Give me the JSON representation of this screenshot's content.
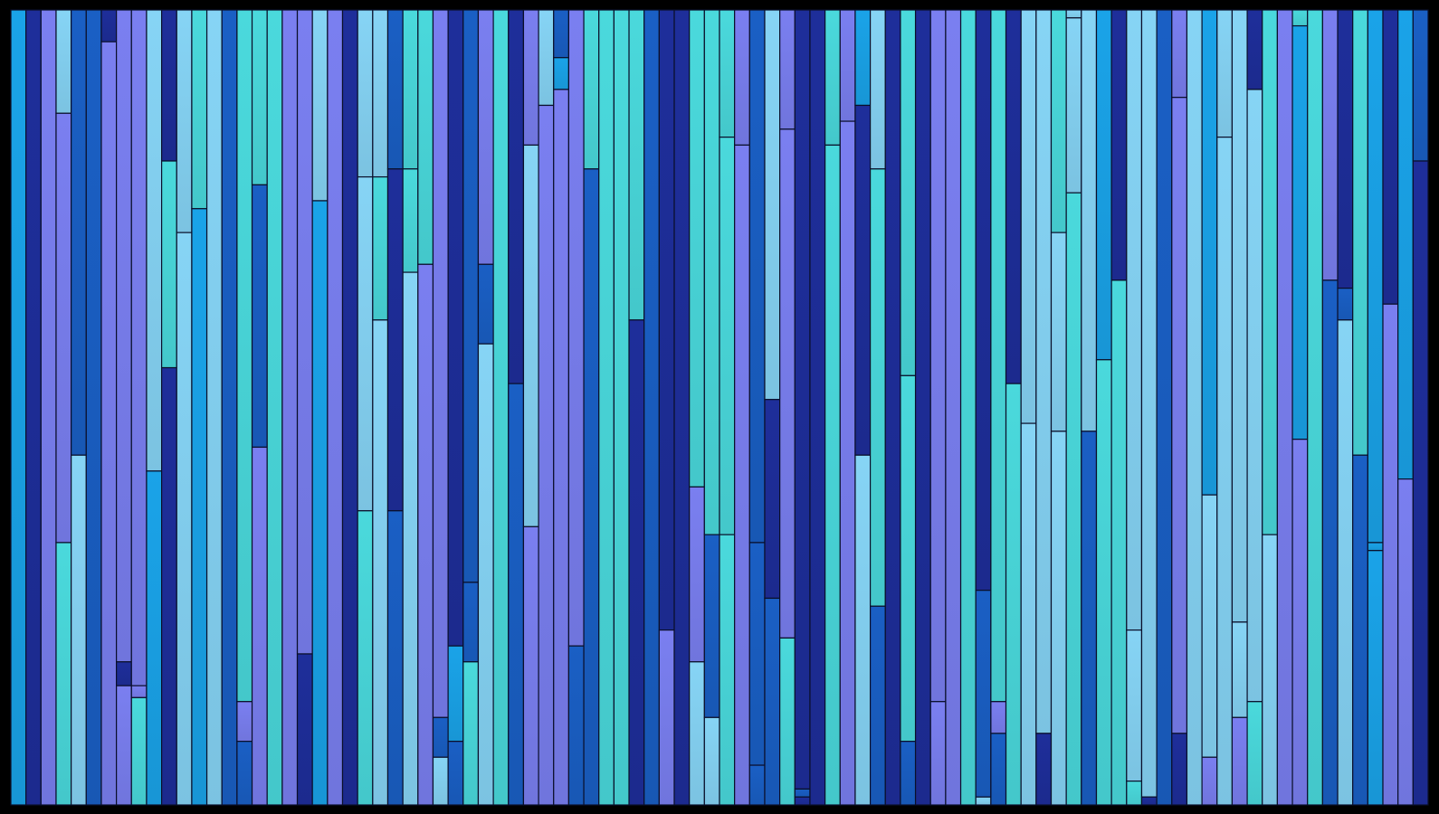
{
  "colors": {
    "background": "#000000",
    "palette": [
      "#1e2e9a",
      "#1a5fc4",
      "#1aa3e8",
      "#7a7ff0",
      "#86d4f5",
      "#4ad9dc"
    ]
  },
  "columns": [
    [
      [
        0,
        1,
        2
      ]
    ],
    [
      [
        0,
        1,
        0
      ]
    ],
    [
      [
        0,
        1,
        3
      ]
    ],
    [
      [
        0,
        0.13,
        4
      ],
      [
        0.13,
        0.67,
        3
      ],
      [
        0.67,
        1,
        5
      ]
    ],
    [
      [
        0,
        0.56,
        1
      ],
      [
        0.56,
        1,
        4
      ]
    ],
    [
      [
        0,
        1,
        1
      ]
    ],
    [
      [
        0,
        0.04,
        0
      ],
      [
        0.04,
        1,
        3
      ]
    ],
    [
      [
        0,
        0.82,
        3
      ],
      [
        0.82,
        0.85,
        0
      ],
      [
        0.85,
        1,
        3
      ]
    ],
    [
      [
        0,
        0.85,
        3
      ],
      [
        0.85,
        0.865,
        3
      ],
      [
        0.865,
        1,
        5
      ]
    ],
    [
      [
        0,
        0.58,
        4
      ],
      [
        0.58,
        1,
        2
      ]
    ],
    [
      [
        0,
        0.19,
        0
      ],
      [
        0.19,
        0.45,
        5
      ],
      [
        0.45,
        1,
        0
      ]
    ],
    [
      [
        0,
        0.28,
        4
      ],
      [
        0.28,
        1,
        4
      ]
    ],
    [
      [
        0,
        0.25,
        5
      ],
      [
        0.25,
        1,
        2
      ]
    ],
    [
      [
        0,
        1,
        4
      ]
    ],
    [
      [
        0,
        1,
        1
      ]
    ],
    [
      [
        0,
        0.87,
        5
      ],
      [
        0.87,
        0.92,
        3
      ],
      [
        0.92,
        1,
        1
      ]
    ],
    [
      [
        0,
        0.22,
        5
      ],
      [
        0.22,
        0.55,
        1
      ],
      [
        0.55,
        1,
        3
      ]
    ],
    [
      [
        0,
        1,
        5
      ]
    ],
    [
      [
        0,
        1,
        3
      ]
    ],
    [
      [
        0,
        0.81,
        3
      ],
      [
        0.81,
        1,
        0
      ]
    ],
    [
      [
        0,
        0.24,
        4
      ],
      [
        0.24,
        1,
        2
      ]
    ],
    [
      [
        0,
        1,
        3
      ]
    ],
    [
      [
        0,
        1,
        0
      ]
    ],
    [
      [
        0,
        0.21,
        4
      ],
      [
        0.21,
        0.63,
        4
      ],
      [
        0.63,
        1,
        5
      ]
    ],
    [
      [
        0,
        0.21,
        4
      ],
      [
        0.21,
        0.39,
        5
      ],
      [
        0.39,
        1,
        4
      ]
    ],
    [
      [
        0,
        0.2,
        1
      ],
      [
        0.2,
        0.63,
        0
      ],
      [
        0.63,
        1,
        1
      ]
    ],
    [
      [
        0,
        0.2,
        5
      ],
      [
        0.2,
        0.33,
        5
      ],
      [
        0.33,
        1,
        4
      ]
    ],
    [
      [
        0,
        0.32,
        5
      ],
      [
        0.32,
        1,
        3
      ]
    ],
    [
      [
        0,
        0.89,
        3
      ],
      [
        0.89,
        0.94,
        1
      ],
      [
        0.94,
        1,
        4
      ]
    ],
    [
      [
        0,
        0.8,
        0
      ],
      [
        0.8,
        0.92,
        2
      ],
      [
        0.92,
        1,
        1
      ]
    ],
    [
      [
        0,
        0.72,
        1
      ],
      [
        0.72,
        0.82,
        1
      ],
      [
        0.82,
        1,
        5
      ]
    ],
    [
      [
        0,
        0.32,
        3
      ],
      [
        0.32,
        0.42,
        1
      ],
      [
        0.42,
        1,
        4
      ]
    ],
    [
      [
        0,
        1,
        5
      ]
    ],
    [
      [
        0,
        0.47,
        0
      ],
      [
        0.47,
        1,
        1
      ]
    ],
    [
      [
        0,
        0.17,
        3
      ],
      [
        0.17,
        0.65,
        4
      ],
      [
        0.65,
        1,
        3
      ]
    ],
    [
      [
        0,
        0.12,
        4
      ],
      [
        0.12,
        1,
        3
      ]
    ],
    [
      [
        0,
        0.06,
        1
      ],
      [
        0.06,
        0.1,
        2
      ],
      [
        0.1,
        1,
        3
      ]
    ],
    [
      [
        0,
        0.8,
        3
      ],
      [
        0.8,
        1,
        1
      ]
    ],
    [
      [
        0,
        0.2,
        5
      ],
      [
        0.2,
        1,
        1
      ]
    ],
    [
      [
        0,
        1,
        5
      ]
    ],
    [
      [
        0,
        1,
        5
      ]
    ],
    [
      [
        0,
        0.39,
        5
      ],
      [
        0.39,
        1,
        0
      ]
    ],
    [
      [
        0,
        1,
        1
      ]
    ],
    [
      [
        0,
        0.78,
        0
      ],
      [
        0.78,
        1,
        3
      ]
    ],
    [
      [
        0,
        1,
        0
      ]
    ],
    [
      [
        0,
        0.6,
        5
      ],
      [
        0.6,
        0.82,
        3
      ],
      [
        0.82,
        1,
        4
      ]
    ],
    [
      [
        0,
        0.66,
        5
      ],
      [
        0.66,
        0.89,
        1
      ],
      [
        0.89,
        1,
        4
      ]
    ],
    [
      [
        0,
        0.16,
        5
      ],
      [
        0.16,
        0.66,
        5
      ],
      [
        0.66,
        1,
        5
      ]
    ],
    [
      [
        0,
        0.17,
        3
      ],
      [
        0.17,
        1,
        3
      ]
    ],
    [
      [
        0,
        0.67,
        1
      ],
      [
        0.67,
        0.95,
        1
      ],
      [
        0.95,
        1,
        1
      ]
    ],
    [
      [
        0,
        0.49,
        4
      ],
      [
        0.49,
        0.74,
        0
      ],
      [
        0.74,
        1,
        1
      ]
    ],
    [
      [
        0,
        0.15,
        3
      ],
      [
        0.15,
        0.79,
        3
      ],
      [
        0.79,
        1,
        5
      ]
    ],
    [
      [
        0,
        0.98,
        0
      ],
      [
        0.98,
        0.99,
        1
      ],
      [
        0.99,
        1,
        0
      ]
    ],
    [
      [
        0,
        1,
        0
      ]
    ],
    [
      [
        0,
        0.17,
        5
      ],
      [
        0.17,
        1,
        5
      ]
    ],
    [
      [
        0,
        0.14,
        3
      ],
      [
        0.14,
        1,
        3
      ]
    ],
    [
      [
        0,
        0.12,
        2
      ],
      [
        0.12,
        0.56,
        0
      ],
      [
        0.56,
        1,
        4
      ]
    ],
    [
      [
        0,
        0.2,
        4
      ],
      [
        0.2,
        0.75,
        5
      ],
      [
        0.75,
        1,
        1
      ]
    ],
    [
      [
        0,
        1,
        0
      ]
    ],
    [
      [
        0,
        0.46,
        5
      ],
      [
        0.46,
        0.92,
        5
      ],
      [
        0.92,
        1,
        1
      ]
    ],
    [
      [
        0,
        1,
        0
      ]
    ],
    [
      [
        0,
        0.87,
        3
      ],
      [
        0.87,
        1,
        3
      ]
    ],
    [
      [
        0,
        1,
        3
      ]
    ],
    [
      [
        0,
        1,
        5
      ]
    ],
    [
      [
        0,
        0.73,
        0
      ],
      [
        0.73,
        0.99,
        1
      ],
      [
        0.99,
        1,
        4
      ]
    ],
    [
      [
        0,
        0.87,
        5
      ],
      [
        0.87,
        0.91,
        3
      ],
      [
        0.91,
        1,
        1
      ]
    ],
    [
      [
        0,
        0.47,
        0
      ],
      [
        0.47,
        1,
        5
      ]
    ],
    [
      [
        0,
        0.52,
        4
      ],
      [
        0.52,
        1,
        4
      ]
    ],
    [
      [
        0,
        0.91,
        4
      ],
      [
        0.91,
        1,
        0
      ]
    ],
    [
      [
        0,
        0.28,
        5
      ],
      [
        0.28,
        0.53,
        4
      ],
      [
        0.53,
        1,
        4
      ]
    ],
    [
      [
        0,
        0.01,
        4
      ],
      [
        0.01,
        0.23,
        4
      ],
      [
        0.23,
        1,
        5
      ]
    ],
    [
      [
        0,
        0.53,
        4
      ],
      [
        0.53,
        1,
        1
      ]
    ],
    [
      [
        0,
        0.44,
        2
      ],
      [
        0.44,
        1,
        5
      ]
    ],
    [
      [
        0,
        0.34,
        0
      ],
      [
        0.34,
        1,
        5
      ]
    ],
    [
      [
        0,
        0.78,
        4
      ],
      [
        0.78,
        0.97,
        4
      ],
      [
        0.97,
        1,
        5
      ]
    ],
    [
      [
        0,
        0.99,
        4
      ],
      [
        0.99,
        1,
        0
      ]
    ],
    [
      [
        0,
        1,
        1
      ]
    ],
    [
      [
        0,
        0.11,
        3
      ],
      [
        0.11,
        0.91,
        3
      ],
      [
        0.91,
        1,
        0
      ]
    ],
    [
      [
        0,
        1,
        4
      ]
    ],
    [
      [
        0,
        0.61,
        2
      ],
      [
        0.61,
        0.94,
        4
      ],
      [
        0.94,
        1,
        3
      ]
    ],
    [
      [
        0,
        0.16,
        4
      ],
      [
        0.16,
        1,
        4
      ]
    ],
    [
      [
        0,
        0.77,
        4
      ],
      [
        0.77,
        0.89,
        4
      ],
      [
        0.89,
        1,
        3
      ]
    ],
    [
      [
        0,
        0.1,
        0
      ],
      [
        0.1,
        0.87,
        4
      ],
      [
        0.87,
        1,
        5
      ]
    ],
    [
      [
        0,
        0.66,
        5
      ],
      [
        0.66,
        1,
        4
      ]
    ],
    [
      [
        0,
        1,
        3
      ]
    ],
    [
      [
        0,
        0.02,
        5
      ],
      [
        0.02,
        0.54,
        2
      ],
      [
        0.54,
        1,
        3
      ]
    ],
    [
      [
        0,
        1,
        5
      ]
    ],
    [
      [
        0,
        0.34,
        3
      ],
      [
        0.34,
        1,
        1
      ]
    ],
    [
      [
        0,
        0.35,
        0
      ],
      [
        0.35,
        0.39,
        1
      ],
      [
        0.39,
        1,
        4
      ]
    ],
    [
      [
        0,
        0.56,
        5
      ],
      [
        0.56,
        1,
        1
      ]
    ],
    [
      [
        0,
        0.67,
        2
      ],
      [
        0.67,
        0.68,
        2
      ],
      [
        0.68,
        1,
        2
      ]
    ],
    [
      [
        0,
        0.37,
        0
      ],
      [
        0.37,
        1,
        3
      ]
    ],
    [
      [
        0,
        0.59,
        2
      ],
      [
        0.59,
        1,
        3
      ]
    ],
    [
      [
        0,
        0.19,
        1
      ],
      [
        0.19,
        1,
        0
      ]
    ]
  ]
}
